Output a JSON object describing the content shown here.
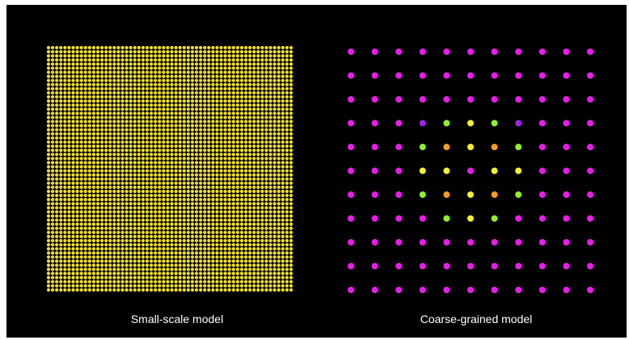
{
  "captions": {
    "left": "Small-scale model",
    "right": "Coarse-grained model"
  },
  "colors": {
    "background": "#000000",
    "fine_dot": "#f2e12a",
    "magenta": "#f018f0",
    "purple": "#a020f0",
    "lime": "#8ef02a",
    "yellow": "#f5f030",
    "orange": "#f59c1e"
  },
  "small_scale": {
    "rows": 60,
    "cols": 60,
    "dot_color_key": "fine_dot"
  },
  "coarse_grained": {
    "rows": 11,
    "cols": 11,
    "default_color_key": "magenta",
    "grid": [
      [
        "m",
        "m",
        "m",
        "m",
        "m",
        "m",
        "m",
        "m",
        "m",
        "m",
        "m"
      ],
      [
        "m",
        "m",
        "m",
        "m",
        "m",
        "m",
        "m",
        "m",
        "m",
        "m",
        "m"
      ],
      [
        "m",
        "m",
        "m",
        "m",
        "m",
        "m",
        "m",
        "m",
        "m",
        "m",
        "m"
      ],
      [
        "m",
        "m",
        "m",
        "p",
        "l",
        "y",
        "l",
        "p",
        "m",
        "m",
        "m"
      ],
      [
        "m",
        "m",
        "m",
        "l",
        "o",
        "y",
        "o",
        "l",
        "m",
        "m",
        "m"
      ],
      [
        "m",
        "m",
        "m",
        "y",
        "y",
        "m",
        "y",
        "y",
        "m",
        "m",
        "m"
      ],
      [
        "m",
        "m",
        "m",
        "l",
        "o",
        "y",
        "o",
        "l",
        "m",
        "m",
        "m"
      ],
      [
        "m",
        "m",
        "m",
        "m",
        "l",
        "y",
        "l",
        "m",
        "m",
        "m",
        "m"
      ],
      [
        "m",
        "m",
        "m",
        "m",
        "m",
        "m",
        "m",
        "m",
        "m",
        "m",
        "m"
      ],
      [
        "m",
        "m",
        "m",
        "m",
        "m",
        "m",
        "m",
        "m",
        "m",
        "m",
        "m"
      ],
      [
        "m",
        "m",
        "m",
        "m",
        "m",
        "m",
        "m",
        "m",
        "m",
        "m",
        "m"
      ]
    ],
    "legend_codes": {
      "m": "magenta",
      "p": "purple",
      "l": "lime",
      "y": "yellow",
      "o": "orange"
    }
  }
}
